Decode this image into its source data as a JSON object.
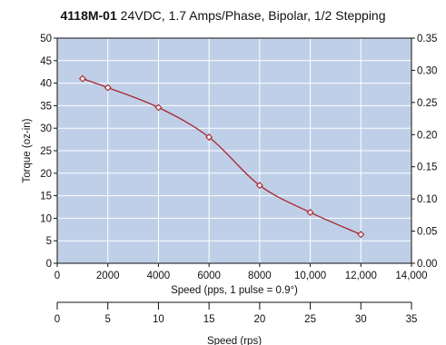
{
  "title": {
    "model": "4118M-01",
    "spec": "24VDC, 1.7 Amps/Phase, Bipolar, 1/2 Stepping"
  },
  "chart_data": {
    "type": "line",
    "title": "4118M-01 24VDC, 1.7 Amps/Phase, Bipolar, 1/2 Stepping",
    "x": [
      1000,
      2000,
      4000,
      6000,
      8000,
      10000,
      12000
    ],
    "series": [
      {
        "values": [
          41,
          39,
          34.6,
          28,
          17.3,
          11.3,
          6.4
        ]
      }
    ],
    "xlabel": "Speed (pps, 1 pulse = 0.9°)",
    "xlim": [
      0,
      14000
    ],
    "x_ticks": [
      "0",
      "2000",
      "4000",
      "6000",
      "8000",
      "10,000",
      "12,000",
      "14,000"
    ],
    "ylabel": "Torque (oz-in)",
    "ylim": [
      0,
      50
    ],
    "y_ticks": [
      "0",
      "5",
      "10",
      "15",
      "20",
      "25",
      "30",
      "35",
      "40",
      "45",
      "50"
    ],
    "y2_ticks": [
      "0.00",
      "0.05",
      "0.10",
      "0.15",
      "0.20",
      "0.25",
      "0.30",
      "0.35"
    ],
    "x2label": "Speed (rps)",
    "x2_ticks": [
      "0",
      "5",
      "10",
      "15",
      "20",
      "25",
      "30",
      "35"
    ],
    "background_color": "#bfcfe8",
    "grid_color": "#ffffff",
    "line_color": "#a8262d",
    "marker_fill": "#ffffff",
    "grid": true
  }
}
